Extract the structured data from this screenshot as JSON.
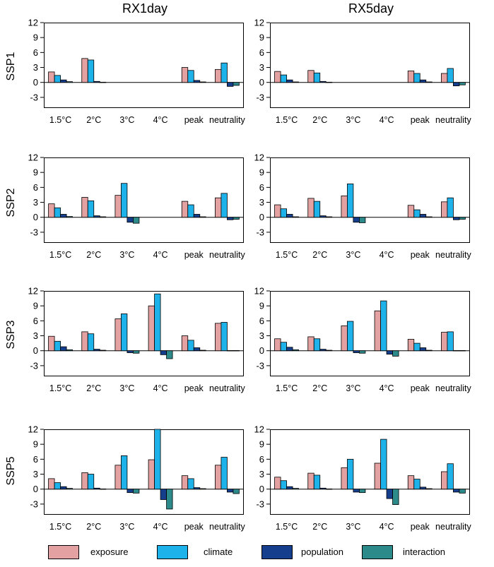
{
  "chart_data": {
    "type": "bar",
    "colors": {
      "exposure": "#e4a1a1",
      "climate": "#1eb2eb",
      "population": "#153e8c",
      "interaction": "#2c8a8a"
    },
    "series_names": [
      "exposure",
      "climate",
      "population",
      "interaction"
    ],
    "categories": [
      "1.5°C",
      "2°C",
      "3°C",
      "4°C",
      "peak",
      "neutrality"
    ],
    "yticks": [
      "12",
      "9",
      "6",
      "3",
      "0",
      "-3"
    ],
    "ylim": [
      -5,
      12
    ],
    "column_titles": [
      "RX1day",
      "RX5day"
    ],
    "row_labels": [
      "SSP1",
      "SSP2",
      "SSP3",
      "SSP5"
    ],
    "panels": [
      {
        "scenario": "SSP1",
        "index": "RX1day",
        "values": [
          [
            2.1,
            1.4,
            0.5,
            0.15
          ],
          [
            4.8,
            4.5,
            0.2,
            0.05
          ],
          null,
          null,
          [
            3.0,
            2.4,
            0.4,
            0.1
          ],
          [
            2.6,
            3.9,
            -0.8,
            -0.6
          ]
        ]
      },
      {
        "scenario": "SSP1",
        "index": "RX5day",
        "values": [
          [
            2.2,
            1.5,
            0.5,
            0.1
          ],
          [
            2.4,
            1.9,
            0.2,
            0.05
          ],
          null,
          null,
          [
            2.3,
            1.8,
            0.5,
            0.1
          ],
          [
            1.8,
            2.8,
            -0.7,
            -0.5
          ]
        ]
      },
      {
        "scenario": "SSP2",
        "index": "RX1day",
        "values": [
          [
            2.7,
            1.9,
            0.6,
            0.15
          ],
          [
            4.0,
            3.3,
            0.3,
            0.1
          ],
          [
            4.4,
            6.8,
            -1.0,
            -1.2
          ],
          null,
          [
            3.2,
            2.5,
            0.6,
            0.1
          ],
          [
            3.9,
            4.8,
            -0.5,
            -0.4
          ]
        ]
      },
      {
        "scenario": "SSP2",
        "index": "RX5day",
        "values": [
          [
            2.5,
            1.7,
            0.6,
            0.1
          ],
          [
            3.8,
            3.2,
            0.3,
            0.1
          ],
          [
            4.3,
            6.7,
            -1.0,
            -1.1
          ],
          null,
          [
            2.4,
            1.5,
            0.6,
            0.1
          ],
          [
            3.1,
            3.9,
            -0.5,
            -0.4
          ]
        ]
      },
      {
        "scenario": "SSP3",
        "index": "RX1day",
        "values": [
          [
            2.9,
            1.9,
            0.8,
            0.2
          ],
          [
            3.8,
            3.4,
            0.3,
            0.1
          ],
          [
            6.4,
            7.4,
            -0.4,
            -0.5
          ],
          [
            9.0,
            11.4,
            -0.8,
            -1.6
          ],
          [
            3.0,
            2.1,
            0.6,
            0.1
          ],
          [
            5.5,
            5.7,
            0.05,
            0.05
          ]
        ]
      },
      {
        "scenario": "SSP3",
        "index": "RX5day",
        "values": [
          [
            2.4,
            1.7,
            0.7,
            0.2
          ],
          [
            2.8,
            2.4,
            0.3,
            0.1
          ],
          [
            5.0,
            5.9,
            -0.4,
            -0.5
          ],
          [
            8.0,
            10.0,
            -0.7,
            -1.1
          ],
          [
            2.3,
            1.5,
            0.6,
            0.1
          ],
          [
            3.7,
            3.8,
            0.05,
            0.05
          ]
        ]
      },
      {
        "scenario": "SSP5",
        "index": "RX1day",
        "values": [
          [
            2.1,
            1.3,
            0.5,
            0.15
          ],
          [
            3.3,
            3.0,
            0.2,
            0.05
          ],
          [
            4.8,
            6.7,
            -0.7,
            -0.8
          ],
          [
            5.9,
            12.0,
            -2.1,
            -4.0
          ],
          [
            2.7,
            2.1,
            0.3,
            0.1
          ],
          [
            4.8,
            6.4,
            -0.6,
            -0.9
          ]
        ]
      },
      {
        "scenario": "SSP5",
        "index": "RX5day",
        "values": [
          [
            2.4,
            1.7,
            0.5,
            0.15
          ],
          [
            3.2,
            2.8,
            0.2,
            0.05
          ],
          [
            4.3,
            6.0,
            -0.6,
            -0.7
          ],
          [
            5.2,
            10.0,
            -1.9,
            -3.1
          ],
          [
            2.7,
            2.0,
            0.4,
            0.1
          ],
          [
            3.5,
            5.1,
            -0.6,
            -0.8
          ]
        ]
      }
    ]
  }
}
